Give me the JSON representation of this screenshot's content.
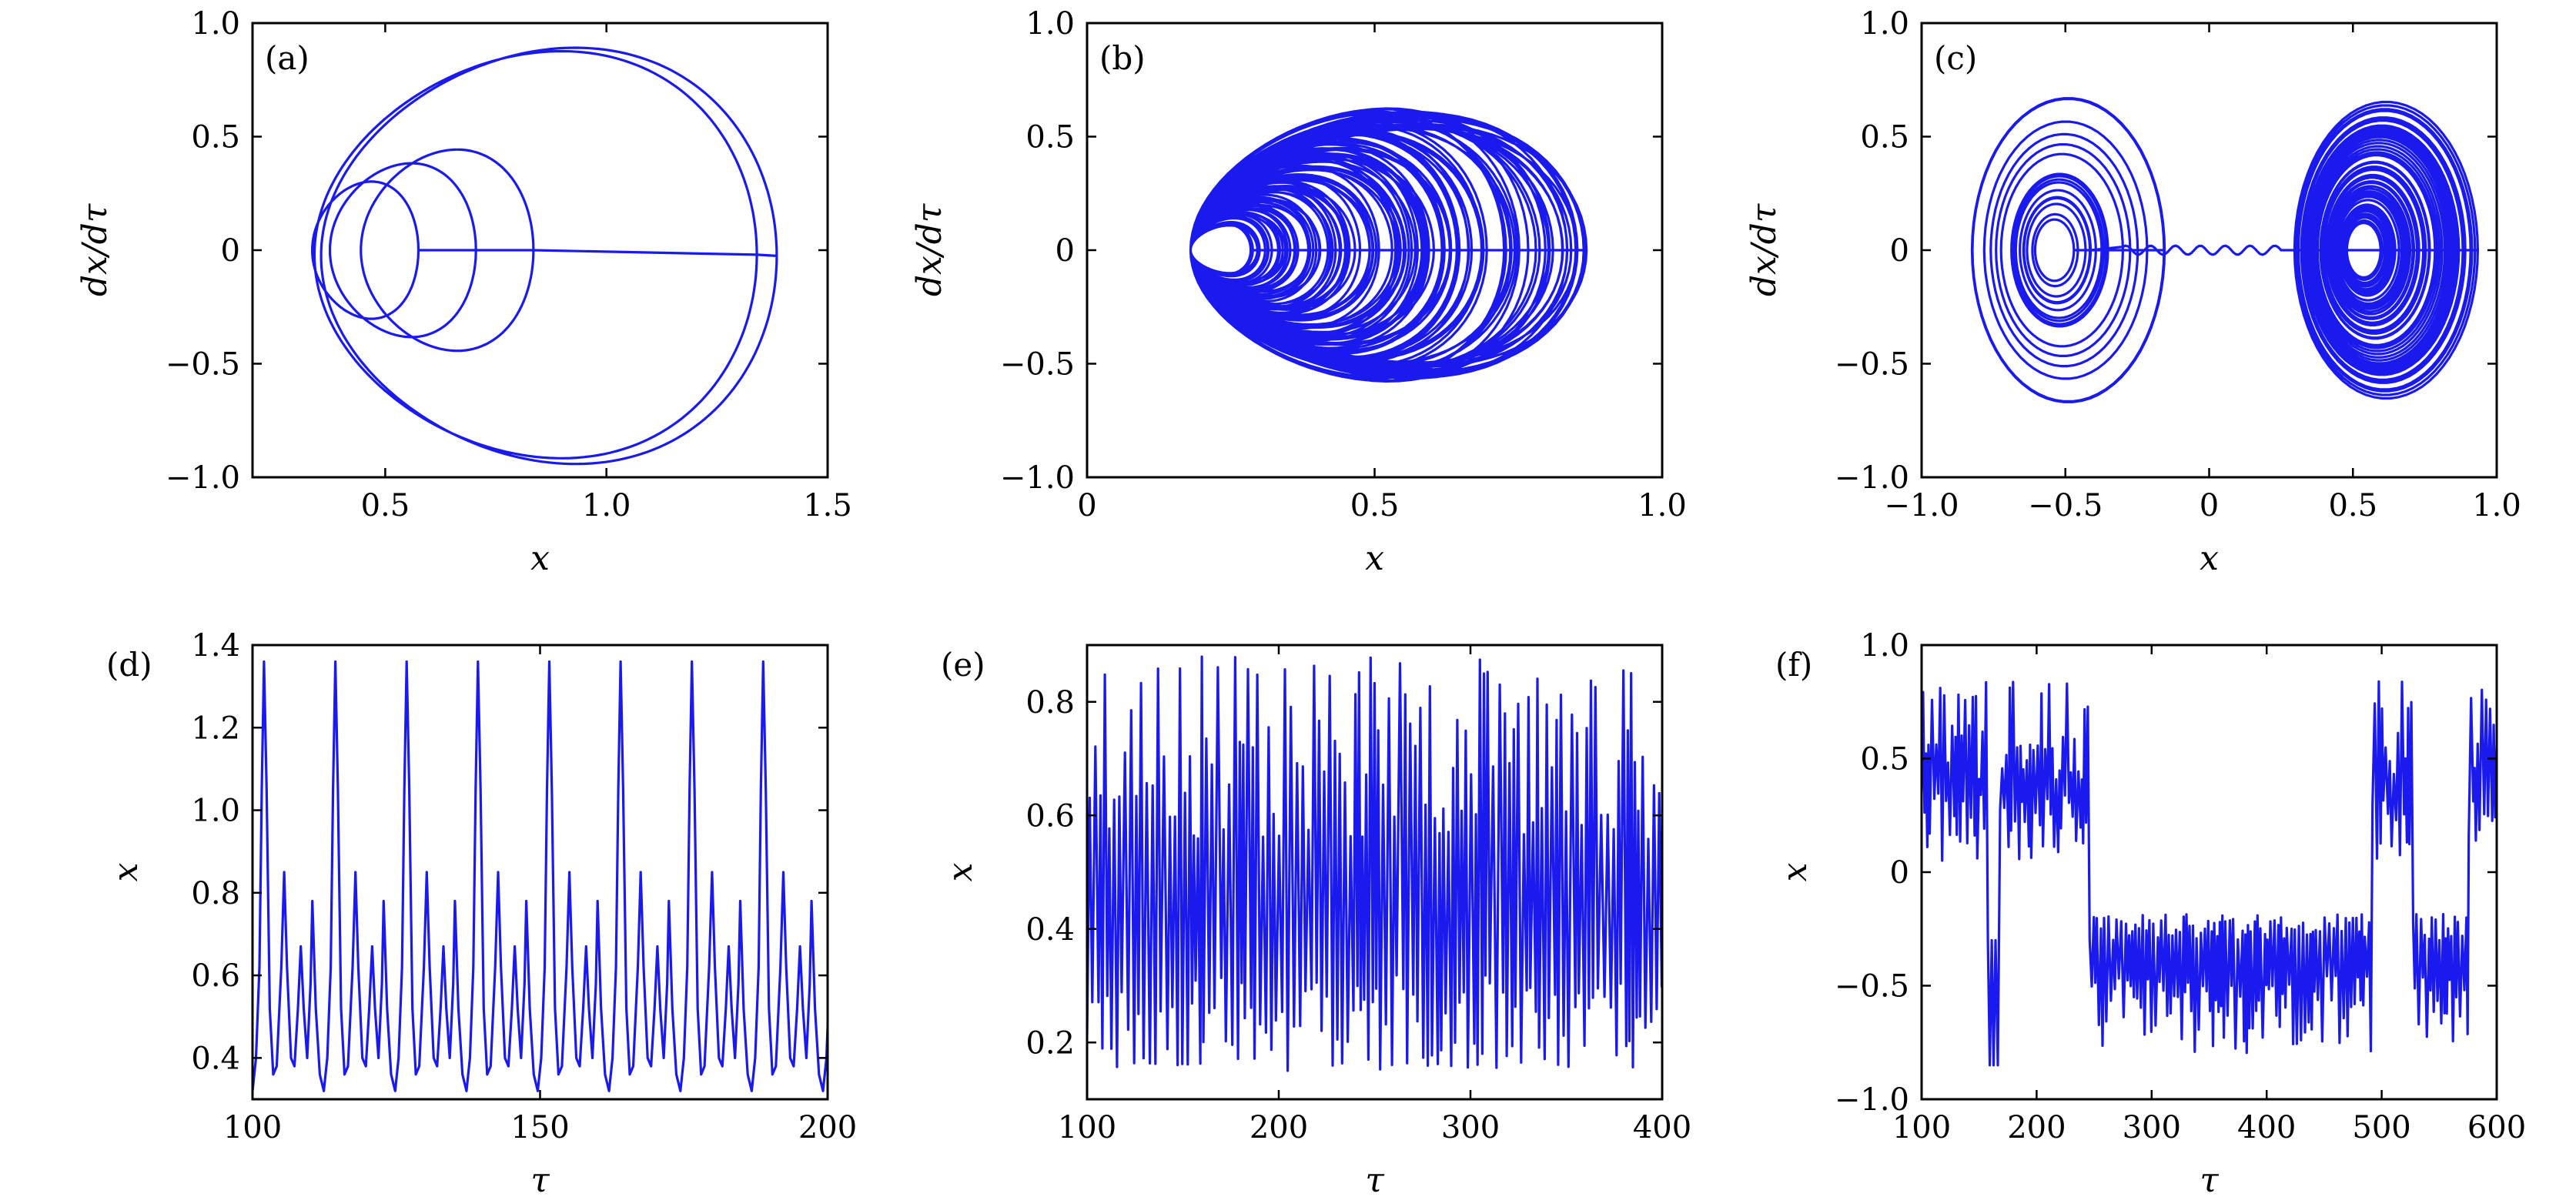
{
  "colors": {
    "line": "#1a1aee",
    "axis": "#000000"
  },
  "chart_data": [
    {
      "id": "a",
      "panel_label": "(a)",
      "type": "line",
      "kind": "phase",
      "xlabel": "x",
      "ylabel": "dx/dτ",
      "xlim": [
        0.2,
        1.5
      ],
      "ylim": [
        -1.0,
        1.0
      ],
      "xticks": [
        0.5,
        1.0,
        1.5
      ],
      "xtick_labels": [
        "0.5",
        "1.0",
        "1.5"
      ],
      "yticks": [
        -1.0,
        -0.5,
        0,
        0.5,
        1.0
      ],
      "ytick_labels": [
        "−1.0",
        "−0.5",
        "0",
        "0.5",
        "1.0"
      ],
      "grid": false,
      "loops": [
        {
          "cx": 0.455,
          "cy": 0.0,
          "rx": 0.12,
          "ry": 0.3
        },
        {
          "cx": 0.54,
          "cy": 0.0,
          "rx": 0.165,
          "ry": 0.38
        },
        {
          "cx": 0.64,
          "cy": 0.0,
          "rx": 0.195,
          "ry": 0.44
        },
        {
          "cx": 0.84,
          "cy": -0.02,
          "rx": 0.5,
          "ry": 0.89
        },
        {
          "cx": 0.87,
          "cy": -0.025,
          "rx": 0.515,
          "ry": 0.91
        }
      ]
    },
    {
      "id": "b",
      "panel_label": "(b)",
      "type": "line",
      "kind": "phase-chaotic",
      "xlabel": "x",
      "ylabel": "dx/dτ",
      "xlim": [
        0,
        1.0
      ],
      "ylim": [
        -1.0,
        1.0
      ],
      "xticks": [
        0,
        0.5,
        1.0
      ],
      "xtick_labels": [
        "0",
        "0.5",
        "1.0"
      ],
      "yticks": [
        -1.0,
        -0.5,
        0,
        0.5,
        1.0
      ],
      "ytick_labels": [
        "−1.0",
        "−0.5",
        "0",
        "0.5",
        "1.0"
      ],
      "grid": false,
      "x_range": [
        0.16,
        0.88
      ],
      "y_range": [
        -0.63,
        0.57
      ]
    },
    {
      "id": "c",
      "panel_label": "(c)",
      "type": "line",
      "kind": "phase-double-scroll",
      "xlabel": "x",
      "ylabel": "dx/dτ",
      "xlim": [
        -1.0,
        1.0
      ],
      "ylim": [
        -1.0,
        1.0
      ],
      "xticks": [
        -1.0,
        -0.5,
        0,
        0.5,
        1.0
      ],
      "xtick_labels": [
        "−1.0",
        "−0.5",
        "0",
        "0.5",
        "1.0"
      ],
      "yticks": [
        -1.0,
        -0.5,
        0,
        0.5,
        1.0
      ],
      "ytick_labels": [
        "−1.0",
        "−0.5",
        "0",
        "0.5",
        "1.0"
      ],
      "grid": false,
      "x_range": [
        -0.84,
        0.84
      ],
      "y_range": [
        -0.67,
        0.68
      ]
    },
    {
      "id": "d",
      "panel_label": "(d)",
      "type": "line",
      "kind": "timeseries-periodic",
      "xlabel": "τ",
      "ylabel": "x",
      "xlim": [
        100,
        200
      ],
      "ylim": [
        0.3,
        1.4
      ],
      "xticks": [
        100,
        150,
        200
      ],
      "xtick_labels": [
        "100",
        "150",
        "200"
      ],
      "yticks": [
        0.4,
        0.6,
        0.8,
        1.0,
        1.2,
        1.4
      ],
      "ytick_labels": [
        "0.4",
        "0.6",
        "0.8",
        "1.0",
        "1.2",
        "1.4"
      ],
      "grid": false,
      "period": 12.4,
      "pattern": [
        [
          0.0,
          0.78
        ],
        [
          0.6,
          0.52
        ],
        [
          1.3,
          0.36
        ],
        [
          2.0,
          0.32
        ],
        [
          2.6,
          0.4
        ],
        [
          3.2,
          0.62
        ],
        [
          3.6,
          1.05
        ],
        [
          4.0,
          1.36
        ],
        [
          4.45,
          1.05
        ],
        [
          5.0,
          0.52
        ],
        [
          5.6,
          0.36
        ],
        [
          6.2,
          0.38
        ],
        [
          7.0,
          0.62
        ],
        [
          7.5,
          0.85
        ],
        [
          8.0,
          0.62
        ],
        [
          8.7,
          0.4
        ],
        [
          9.3,
          0.38
        ],
        [
          9.9,
          0.52
        ],
        [
          10.4,
          0.67
        ],
        [
          10.9,
          0.52
        ],
        [
          11.5,
          0.4
        ],
        [
          12.1,
          0.58
        ]
      ]
    },
    {
      "id": "e",
      "panel_label": "(e)",
      "type": "line",
      "kind": "timeseries-chaotic",
      "xlabel": "τ",
      "ylabel": "x",
      "xlim": [
        100,
        400
      ],
      "ylim": [
        0.1,
        0.9
      ],
      "xticks": [
        100,
        200,
        300,
        400
      ],
      "xtick_labels": [
        "100",
        "200",
        "300",
        "400"
      ],
      "yticks": [
        0.2,
        0.4,
        0.6,
        0.8
      ],
      "ytick_labels": [
        "0.2",
        "0.4",
        "0.6",
        "0.8"
      ],
      "grid": false,
      "value_range": [
        0.15,
        0.88
      ]
    },
    {
      "id": "f",
      "panel_label": "(f)",
      "type": "line",
      "kind": "timeseries-intermittent",
      "xlabel": "τ",
      "ylabel": "x",
      "xlim": [
        100,
        600
      ],
      "ylim": [
        -1.0,
        1.0
      ],
      "xticks": [
        100,
        200,
        300,
        400,
        500,
        600
      ],
      "xtick_labels": [
        "100",
        "200",
        "300",
        "400",
        "500",
        "600"
      ],
      "yticks": [
        -1.0,
        -0.5,
        0,
        0.5,
        1.0
      ],
      "ytick_labels": [
        "−1.0",
        "−0.5",
        "0",
        "0.5",
        "1.0"
      ],
      "grid": false,
      "value_range": [
        -0.85,
        0.84
      ],
      "phases": [
        {
          "from": 100,
          "to": 155,
          "regime": "upper"
        },
        {
          "from": 155,
          "to": 165,
          "regime": "transition"
        },
        {
          "from": 165,
          "to": 245,
          "regime": "upper"
        },
        {
          "from": 245,
          "to": 490,
          "regime": "lower"
        },
        {
          "from": 490,
          "to": 525,
          "regime": "upper"
        },
        {
          "from": 525,
          "to": 575,
          "regime": "lower"
        },
        {
          "from": 575,
          "to": 600,
          "regime": "upper"
        }
      ]
    }
  ]
}
